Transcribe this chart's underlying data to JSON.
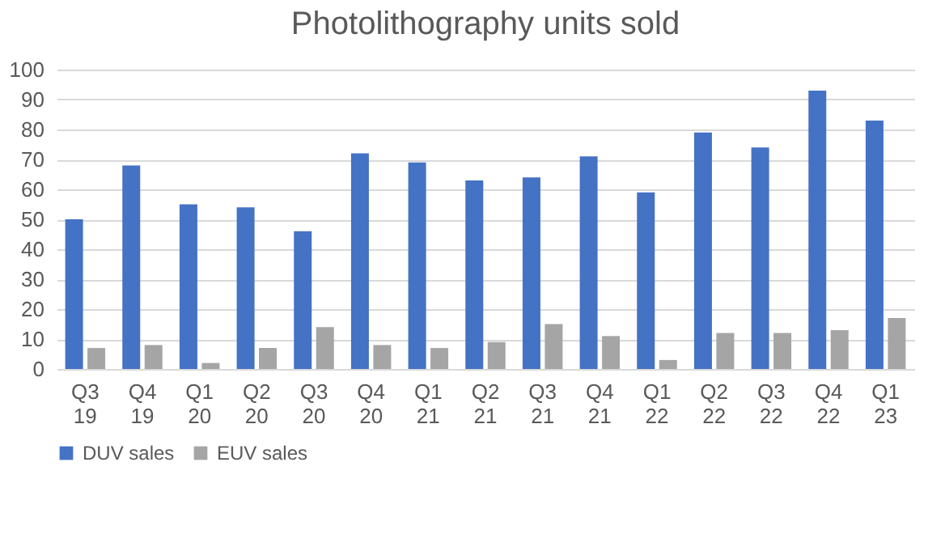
{
  "chart_data": {
    "type": "bar",
    "title": "Photolithography units sold",
    "categories": [
      "Q3 19",
      "Q4 19",
      "Q1 20",
      "Q2 20",
      "Q3 20",
      "Q4 20",
      "Q1 21",
      "Q2 21",
      "Q3 21",
      "Q4 21",
      "Q1 22",
      "Q2 22",
      "Q3 22",
      "Q4 22",
      "Q1 23"
    ],
    "series": [
      {
        "name": "DUV sales",
        "color": "#4472c4",
        "values": [
          50,
          68,
          55,
          54,
          46,
          72,
          69,
          63,
          64,
          71,
          59,
          79,
          74,
          93,
          83
        ]
      },
      {
        "name": "EUV sales",
        "color": "#a5a5a5",
        "values": [
          7,
          8,
          2,
          7,
          14,
          8,
          7,
          9,
          15,
          11,
          3,
          12,
          12,
          13,
          17
        ]
      }
    ],
    "ylim": [
      0,
      100
    ],
    "yticks": [
      0,
      10,
      20,
      30,
      40,
      50,
      60,
      70,
      80,
      90,
      100
    ],
    "grid": "y",
    "legend": "bottom"
  }
}
